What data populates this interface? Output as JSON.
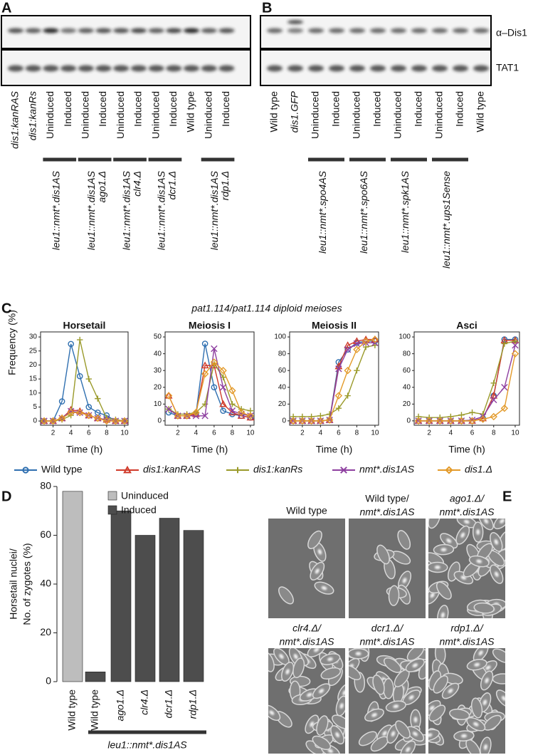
{
  "panel_labels": {
    "a": "A",
    "b": "B",
    "c": "C",
    "d": "D",
    "e": "E"
  },
  "blot_a": {
    "lanes": [
      "dis1:kanRAS",
      "dis1:kanRs",
      "Uninduced",
      "Induced",
      "Uninduced",
      "Induced",
      "Uninduced",
      "Induced",
      "Uninduced",
      "Induced",
      "Wild type",
      "Uninduced",
      "Induced"
    ],
    "groups": [
      {
        "lines": [
          "leu1::nmt*.dis1AS"
        ]
      },
      {
        "lines": [
          "leu1::nmt*.dis1AS",
          "ago1.Δ"
        ]
      },
      {
        "lines": [
          "leu1::nmt*.dis1AS",
          "clr4.Δ"
        ]
      },
      {
        "lines": [
          "leu1::nmt*.dis1AS",
          "dcr1.Δ"
        ]
      },
      {
        "lines": [
          "leu1::nmt*.dis1AS",
          "rdp1.Δ"
        ]
      }
    ]
  },
  "blot_b": {
    "bands": [
      "α–Dis1",
      "TAT1"
    ],
    "lanes": [
      "Wild type",
      "dis1.GFP",
      "Uninduced",
      "Induced",
      "Uninduced",
      "Induced",
      "Uninduced",
      "Induced",
      "Uninduced",
      "Induced",
      "Wild type"
    ],
    "groups": [
      {
        "lines": [
          "leu1::nmt*.spo4AS"
        ]
      },
      {
        "lines": [
          "leu1::nmt*.spo6AS"
        ]
      },
      {
        "lines": [
          "leu1::nmt*.spk1AS"
        ]
      },
      {
        "lines": [
          "leu1::nmt*.ups1Sense"
        ]
      }
    ]
  },
  "panel_c_title": "pat1.114/pat1.114 diploid meioses",
  "chart_data": [
    {
      "type": "line",
      "title": "Horsetail",
      "ylabel": "Frequency (%)",
      "xlabel": "Time (h)",
      "x": [
        1,
        2,
        3,
        4,
        5,
        6,
        7,
        8,
        9,
        10
      ],
      "xlim": [
        0.6,
        10.4
      ],
      "xticks": [
        2,
        4,
        6,
        8,
        10
      ],
      "ylim": [
        -1.5,
        31.8
      ],
      "yticks": [
        0,
        5,
        10,
        15,
        20,
        25,
        30
      ],
      "series": [
        {
          "name": "Wild type",
          "color": "#2f6fb0",
          "marker": "circle",
          "values": [
            0,
            0,
            7,
            27.5,
            16,
            5,
            3,
            2,
            0,
            0
          ]
        },
        {
          "name": "dis1:kanRAS",
          "color": "#d03a2a",
          "marker": "triangle",
          "values": [
            0,
            0,
            1,
            4,
            3.5,
            2,
            1,
            0.5,
            0,
            0
          ]
        },
        {
          "name": "dis1:kanRs",
          "color": "#9a9a2a",
          "marker": "plus",
          "values": [
            0,
            0,
            0.5,
            2,
            29,
            15,
            8,
            1,
            0.5,
            0
          ]
        },
        {
          "name": "nmt*.dis1AS",
          "color": "#8e3fa0",
          "marker": "cross",
          "values": [
            0,
            0,
            1,
            3.5,
            3,
            2,
            1,
            0.5,
            0,
            0
          ]
        },
        {
          "name": "dis1.Δ",
          "color": "#e39a2a",
          "marker": "diamond",
          "values": [
            0,
            0,
            1,
            3,
            3,
            2,
            1,
            0,
            0,
            0
          ]
        }
      ]
    },
    {
      "type": "line",
      "title": "Meiosis I",
      "xlabel": "Time (h)",
      "x": [
        1,
        2,
        3,
        4,
        5,
        6,
        7,
        8,
        9,
        10
      ],
      "xlim": [
        0.6,
        10.4
      ],
      "xticks": [
        2,
        4,
        6,
        8,
        10
      ],
      "ylim": [
        -2.6,
        53
      ],
      "yticks": [
        0,
        10,
        20,
        30,
        40,
        50
      ],
      "series": [
        {
          "name": "Wild type",
          "color": "#2f6fb0",
          "marker": "circle",
          "values": [
            5,
            3,
            3,
            4,
            46,
            20,
            6,
            4,
            3,
            2
          ]
        },
        {
          "name": "dis1:kanRAS",
          "color": "#d03a2a",
          "marker": "triangle",
          "values": [
            15,
            3,
            3,
            4,
            33,
            33,
            10,
            5,
            3,
            2
          ]
        },
        {
          "name": "dis1:kanRs",
          "color": "#9a9a2a",
          "marker": "plus",
          "values": [
            7,
            4,
            4,
            5,
            10,
            34,
            26,
            10,
            7,
            6
          ]
        },
        {
          "name": "nmt*.dis1AS",
          "color": "#8e3fa0",
          "marker": "cross",
          "values": [
            7,
            3,
            3,
            3,
            3,
            43,
            20,
            6,
            4,
            3
          ]
        },
        {
          "name": "dis1.Δ",
          "color": "#e39a2a",
          "marker": "diamond",
          "values": [
            15,
            3,
            3,
            5,
            28,
            35,
            30,
            18,
            5,
            3
          ]
        }
      ]
    },
    {
      "type": "line",
      "title": "Meiosis II",
      "xlabel": "Time (h)",
      "x": [
        1,
        2,
        3,
        4,
        5,
        6,
        7,
        8,
        9,
        10
      ],
      "xlim": [
        0.6,
        10.4
      ],
      "xticks": [
        2,
        4,
        6,
        8,
        10
      ],
      "ylim": [
        -5.2,
        106
      ],
      "yticks": [
        0,
        20,
        40,
        60,
        80,
        100
      ],
      "series": [
        {
          "name": "Wild type",
          "color": "#2f6fb0",
          "marker": "circle",
          "values": [
            0,
            0,
            0,
            0,
            1,
            70,
            85,
            93,
            95,
            95
          ]
        },
        {
          "name": "dis1:kanRAS",
          "color": "#d03a2a",
          "marker": "triangle",
          "values": [
            0,
            0,
            0,
            0,
            1,
            65,
            90,
            95,
            97,
            97
          ]
        },
        {
          "name": "dis1:kanRs",
          "color": "#9a9a2a",
          "marker": "plus",
          "values": [
            5,
            5,
            5,
            6,
            8,
            15,
            30,
            60,
            88,
            90
          ]
        },
        {
          "name": "nmt*.dis1AS",
          "color": "#8e3fa0",
          "marker": "cross",
          "values": [
            0,
            0,
            0,
            0,
            1,
            62,
            85,
            92,
            93,
            93
          ]
        },
        {
          "name": "dis1.Δ",
          "color": "#e39a2a",
          "marker": "diamond",
          "values": [
            0,
            0,
            0,
            0,
            1,
            30,
            60,
            85,
            95,
            97
          ]
        }
      ]
    },
    {
      "type": "line",
      "title": "Asci",
      "xlabel": "Time (h)",
      "x": [
        1,
        2,
        3,
        4,
        5,
        6,
        7,
        8,
        9,
        10
      ],
      "xlim": [
        0.6,
        10.4
      ],
      "xticks": [
        2,
        4,
        6,
        8,
        10
      ],
      "ylim": [
        -5.2,
        106
      ],
      "yticks": [
        0,
        20,
        40,
        60,
        80,
        100
      ],
      "series": [
        {
          "name": "Wild type",
          "color": "#2f6fb0",
          "marker": "circle",
          "values": [
            0,
            0,
            0,
            0,
            0,
            0,
            3,
            30,
            97,
            97
          ]
        },
        {
          "name": "dis1:kanRAS",
          "color": "#d03a2a",
          "marker": "triangle",
          "values": [
            0,
            0,
            0,
            0,
            0,
            0,
            3,
            30,
            96,
            96
          ]
        },
        {
          "name": "dis1:kanRs",
          "color": "#9a9a2a",
          "marker": "plus",
          "values": [
            5,
            4,
            4,
            5,
            7,
            10,
            8,
            45,
            92,
            95
          ]
        },
        {
          "name": "nmt*.dis1AS",
          "color": "#8e3fa0",
          "marker": "cross",
          "values": [
            0,
            0,
            0,
            0,
            0,
            1,
            5,
            25,
            40,
            90
          ]
        },
        {
          "name": "dis1.Δ",
          "color": "#e39a2a",
          "marker": "diamond",
          "values": [
            0,
            0,
            0,
            0,
            0,
            0,
            2,
            5,
            15,
            80
          ]
        }
      ]
    },
    {
      "type": "bar",
      "ylabel": [
        "Horsetail nuclei/",
        "No. of zygotes (%)"
      ],
      "categories": [
        "Wild type",
        "Wild type",
        "ago1.Δ",
        "clr4.Δ",
        "dcr1.Δ",
        "rdp1.Δ"
      ],
      "ylim": [
        0,
        80
      ],
      "yticks": [
        0,
        20,
        40,
        60,
        80
      ],
      "series": [
        {
          "name": "Uninduced",
          "color": "#bdbdbd",
          "values": [
            78,
            null,
            null,
            null,
            null,
            null
          ]
        },
        {
          "name": "Induced",
          "color": "#4d4d4d",
          "values": [
            null,
            4,
            70,
            60,
            67,
            62
          ]
        }
      ],
      "bracket_label": "leu1::nmt*.dis1AS"
    }
  ],
  "micrographs": [
    {
      "lines": [
        "Wild type"
      ]
    },
    {
      "lines": [
        "Wild type/",
        "nmt*.dis1AS"
      ]
    },
    {
      "lines": [
        "ago1.Δ/",
        "nmt*.dis1AS"
      ]
    },
    {
      "lines": [
        "clr4.Δ/",
        "nmt*.dis1AS"
      ]
    },
    {
      "lines": [
        "dcr1.Δ/",
        "nmt*.dis1AS"
      ]
    },
    {
      "lines": [
        "rdp1.Δ/",
        "nmt*.dis1AS"
      ]
    }
  ]
}
